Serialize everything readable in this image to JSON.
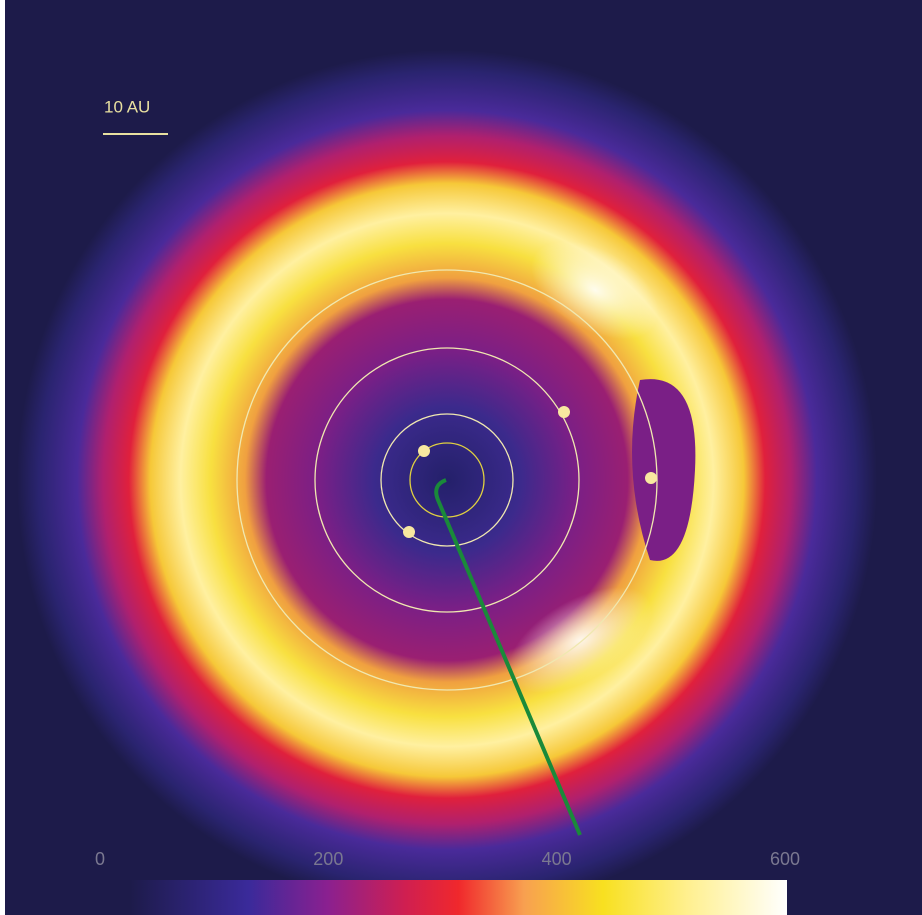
{
  "scale_bar": {
    "label": "10 AU"
  },
  "colorbar": {
    "ticks": [
      0,
      200,
      400,
      600
    ]
  }
}
